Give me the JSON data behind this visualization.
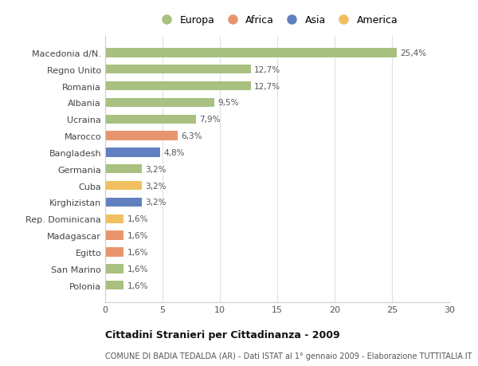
{
  "categories": [
    "Polonia",
    "San Marino",
    "Egitto",
    "Madagascar",
    "Rep. Dominicana",
    "Kirghizistan",
    "Cuba",
    "Germania",
    "Bangladesh",
    "Marocco",
    "Ucraina",
    "Albania",
    "Romania",
    "Regno Unito",
    "Macedonia d/N."
  ],
  "values": [
    1.6,
    1.6,
    1.6,
    1.6,
    1.6,
    3.2,
    3.2,
    3.2,
    4.8,
    6.3,
    7.9,
    9.5,
    12.7,
    12.7,
    25.4
  ],
  "bar_colors": [
    "#a8c080",
    "#a8c080",
    "#e8956d",
    "#e8956d",
    "#f0c060",
    "#6080c0",
    "#f0c060",
    "#a8c080",
    "#6080c0",
    "#e8956d",
    "#a8c080",
    "#a8c080",
    "#a8c080",
    "#a8c080",
    "#a8c080"
  ],
  "labels": [
    "1,6%",
    "1,6%",
    "1,6%",
    "1,6%",
    "1,6%",
    "3,2%",
    "3,2%",
    "3,2%",
    "4,8%",
    "6,3%",
    "7,9%",
    "9,5%",
    "12,7%",
    "12,7%",
    "25,4%"
  ],
  "legend_labels": [
    "Europa",
    "Africa",
    "Asia",
    "America"
  ],
  "legend_colors": [
    "#a8c080",
    "#e8956d",
    "#6080c0",
    "#f0c060"
  ],
  "title": "Cittadini Stranieri per Cittadinanza - 2009",
  "subtitle": "COMUNE DI BADIA TEDALDA (AR) - Dati ISTAT al 1° gennaio 2009 - Elaborazione TUTTITALIA.IT",
  "xlim": [
    0,
    30
  ],
  "xticks": [
    0,
    5,
    10,
    15,
    20,
    25,
    30
  ],
  "background_color": "#ffffff",
  "grid_color": "#e0e0e0",
  "bar_height": 0.55
}
